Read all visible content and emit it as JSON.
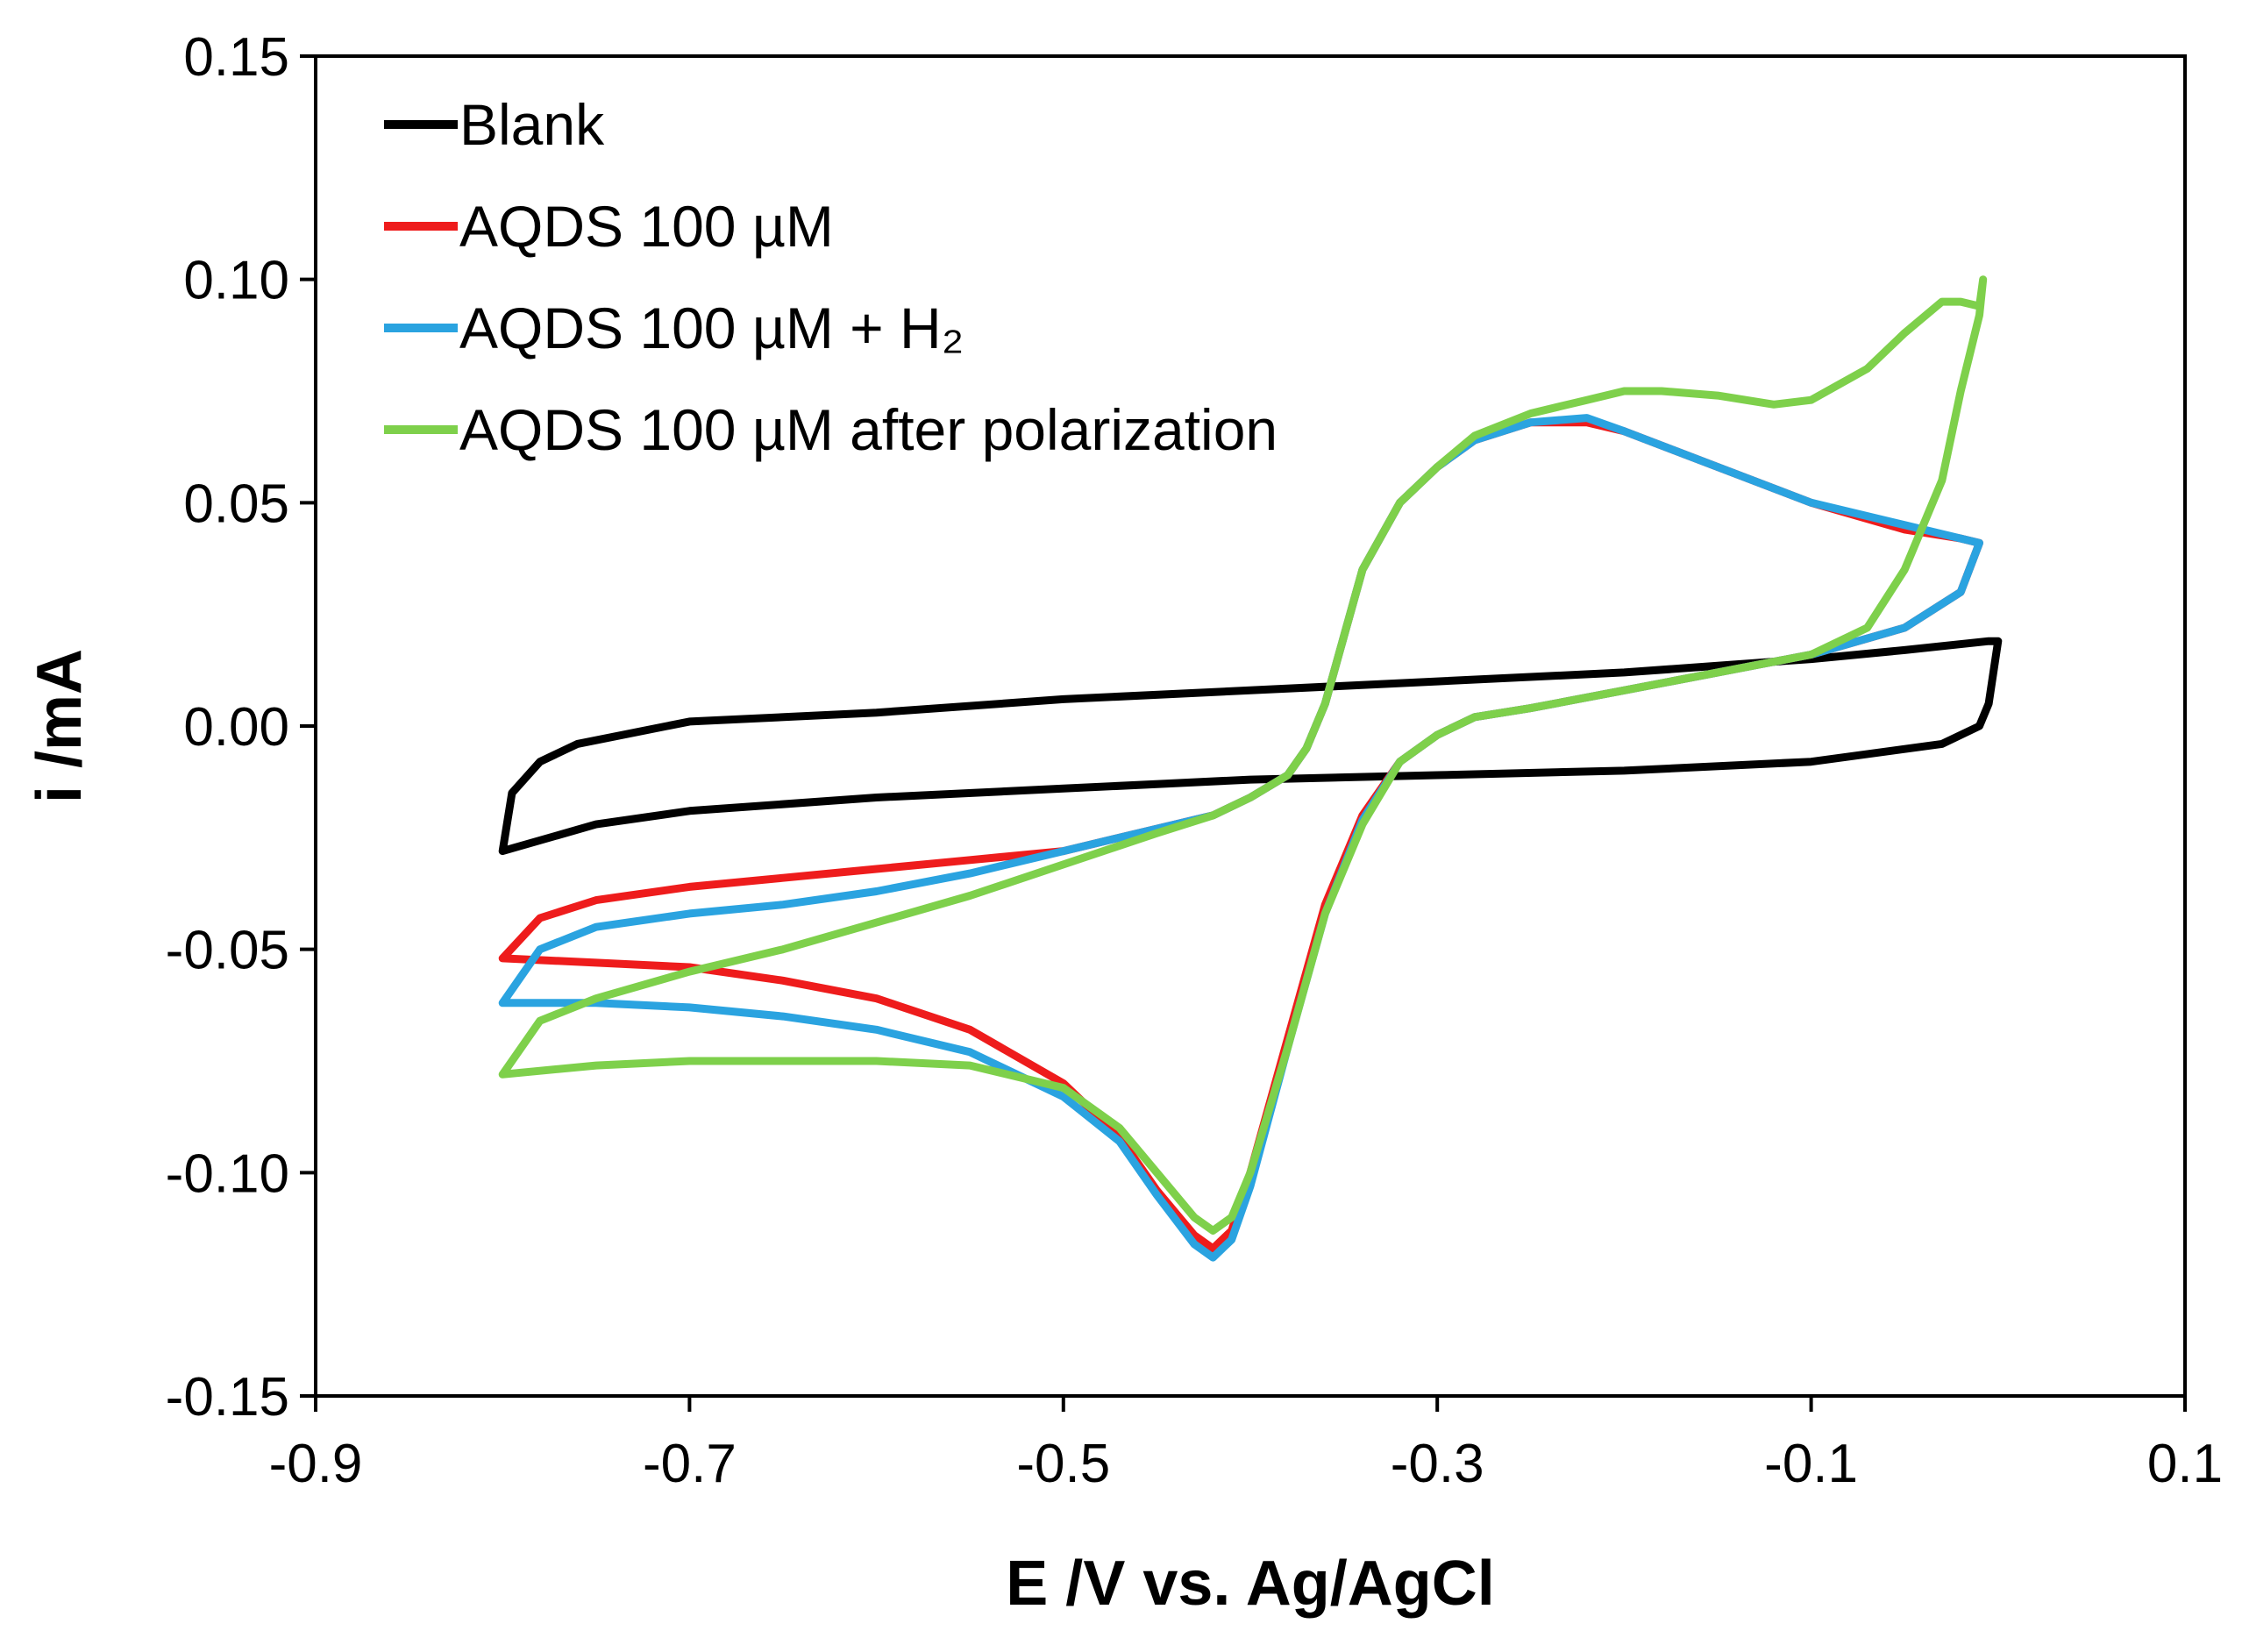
{
  "chart_data": {
    "type": "line",
    "title": "",
    "xlabel": "E /V vs. Ag/AgCl",
    "ylabel": "i /mA",
    "xlim": [
      -0.9,
      0.1
    ],
    "ylim": [
      -0.15,
      0.15
    ],
    "xticks": [
      -0.9,
      -0.7,
      -0.5,
      -0.3,
      -0.1,
      0.1
    ],
    "xtick_labels": [
      "-0.9",
      "-0.7",
      "-0.5",
      "-0.3",
      "-0.1",
      "0.1"
    ],
    "yticks": [
      -0.15,
      -0.1,
      -0.05,
      0.0,
      0.05,
      0.1,
      0.15
    ],
    "ytick_labels": [
      "-0.15",
      "-0.10",
      "-0.05",
      "0.00",
      "0.05",
      "0.10",
      "0.15"
    ],
    "grid": false,
    "legend_position": "top-left",
    "series": [
      {
        "name": "Blank",
        "color": "#000000",
        "x": [
          -0.8,
          -0.75,
          -0.7,
          -0.6,
          -0.5,
          -0.4,
          -0.3,
          -0.2,
          -0.1,
          -0.03,
          -0.01,
          -0.005,
          0.0,
          -0.005,
          -0.05,
          -0.1,
          -0.2,
          -0.3,
          -0.4,
          -0.5,
          -0.6,
          -0.7,
          -0.76,
          -0.78,
          -0.795,
          -0.8
        ],
        "y": [
          -0.028,
          -0.022,
          -0.019,
          -0.016,
          -0.014,
          -0.012,
          -0.011,
          -0.01,
          -0.008,
          -0.004,
          0.0,
          0.005,
          0.019,
          0.019,
          0.017,
          0.015,
          0.012,
          0.01,
          0.008,
          0.006,
          0.003,
          0.001,
          -0.004,
          -0.008,
          -0.015,
          -0.028
        ]
      },
      {
        "name": "AQDS 100 µM",
        "color": "#ee1c1c",
        "x": [
          -0.8,
          -0.75,
          -0.7,
          -0.65,
          -0.6,
          -0.55,
          -0.5,
          -0.47,
          -0.45,
          -0.43,
          -0.42,
          -0.41,
          -0.4,
          -0.38,
          -0.36,
          -0.34,
          -0.32,
          -0.3,
          -0.28,
          -0.25,
          -0.2,
          -0.15,
          -0.1,
          -0.05,
          -0.02,
          -0.01,
          -0.02,
          -0.05,
          -0.1,
          -0.15,
          -0.2,
          -0.22,
          -0.25,
          -0.28,
          -0.3,
          -0.32,
          -0.34,
          -0.35,
          -0.36,
          -0.37,
          -0.38,
          -0.4,
          -0.42,
          -0.45,
          -0.5,
          -0.55,
          -0.6,
          -0.65,
          -0.7,
          -0.75,
          -0.78,
          -0.8
        ],
        "y": [
          -0.052,
          -0.053,
          -0.054,
          -0.057,
          -0.061,
          -0.068,
          -0.08,
          -0.092,
          -0.104,
          -0.114,
          -0.117,
          -0.113,
          -0.1,
          -0.07,
          -0.04,
          -0.02,
          -0.008,
          -0.002,
          0.002,
          0.004,
          0.008,
          0.012,
          0.016,
          0.022,
          0.03,
          0.041,
          0.042,
          0.044,
          0.05,
          0.058,
          0.066,
          0.068,
          0.068,
          0.064,
          0.058,
          0.05,
          0.035,
          0.02,
          0.005,
          -0.005,
          -0.011,
          -0.016,
          -0.02,
          -0.023,
          -0.028,
          -0.03,
          -0.032,
          -0.034,
          -0.036,
          -0.039,
          -0.043,
          -0.052
        ]
      },
      {
        "name": "AQDS 100 µM + H₂",
        "color": "#2aa3e0",
        "x": [
          -0.8,
          -0.75,
          -0.7,
          -0.65,
          -0.6,
          -0.55,
          -0.5,
          -0.47,
          -0.45,
          -0.43,
          -0.42,
          -0.41,
          -0.4,
          -0.38,
          -0.36,
          -0.34,
          -0.32,
          -0.3,
          -0.28,
          -0.25,
          -0.2,
          -0.15,
          -0.1,
          -0.05,
          -0.02,
          -0.01,
          -0.02,
          -0.05,
          -0.1,
          -0.15,
          -0.2,
          -0.22,
          -0.25,
          -0.28,
          -0.3,
          -0.32,
          -0.34,
          -0.35,
          -0.36,
          -0.37,
          -0.38,
          -0.4,
          -0.42,
          -0.45,
          -0.5,
          -0.55,
          -0.6,
          -0.65,
          -0.7,
          -0.75,
          -0.78,
          -0.8
        ],
        "y": [
          -0.062,
          -0.062,
          -0.063,
          -0.065,
          -0.068,
          -0.073,
          -0.083,
          -0.093,
          -0.105,
          -0.116,
          -0.119,
          -0.115,
          -0.103,
          -0.072,
          -0.042,
          -0.021,
          -0.008,
          -0.002,
          0.002,
          0.004,
          0.008,
          0.012,
          0.016,
          0.022,
          0.03,
          0.041,
          0.042,
          0.045,
          0.05,
          0.058,
          0.066,
          0.069,
          0.068,
          0.064,
          0.058,
          0.05,
          0.035,
          0.02,
          0.005,
          -0.005,
          -0.011,
          -0.016,
          -0.02,
          -0.023,
          -0.028,
          -0.033,
          -0.037,
          -0.04,
          -0.042,
          -0.045,
          -0.05,
          -0.062
        ]
      },
      {
        "name": "AQDS 100 µM after polarization",
        "color": "#7ed04b",
        "x": [
          -0.8,
          -0.75,
          -0.7,
          -0.65,
          -0.6,
          -0.55,
          -0.5,
          -0.47,
          -0.45,
          -0.43,
          -0.42,
          -0.41,
          -0.4,
          -0.38,
          -0.36,
          -0.34,
          -0.32,
          -0.3,
          -0.28,
          -0.25,
          -0.2,
          -0.15,
          -0.1,
          -0.07,
          -0.05,
          -0.03,
          -0.02,
          -0.01,
          -0.008,
          -0.01,
          -0.02,
          -0.03,
          -0.05,
          -0.07,
          -0.1,
          -0.12,
          -0.15,
          -0.18,
          -0.2,
          -0.22,
          -0.25,
          -0.28,
          -0.3,
          -0.32,
          -0.34,
          -0.35,
          -0.36,
          -0.37,
          -0.38,
          -0.4,
          -0.42,
          -0.45,
          -0.5,
          -0.55,
          -0.6,
          -0.65,
          -0.7,
          -0.75,
          -0.78,
          -0.8
        ],
        "y": [
          -0.078,
          -0.076,
          -0.075,
          -0.075,
          -0.075,
          -0.076,
          -0.081,
          -0.09,
          -0.1,
          -0.11,
          -0.113,
          -0.11,
          -0.1,
          -0.072,
          -0.042,
          -0.022,
          -0.008,
          -0.002,
          0.002,
          0.004,
          0.008,
          0.012,
          0.016,
          0.022,
          0.035,
          0.055,
          0.075,
          0.092,
          0.1,
          0.094,
          0.095,
          0.095,
          0.088,
          0.08,
          0.073,
          0.072,
          0.074,
          0.075,
          0.075,
          0.073,
          0.07,
          0.065,
          0.058,
          0.05,
          0.035,
          0.02,
          0.005,
          -0.005,
          -0.011,
          -0.016,
          -0.02,
          -0.024,
          -0.031,
          -0.038,
          -0.044,
          -0.05,
          -0.055,
          -0.061,
          -0.066,
          -0.078
        ]
      }
    ]
  }
}
